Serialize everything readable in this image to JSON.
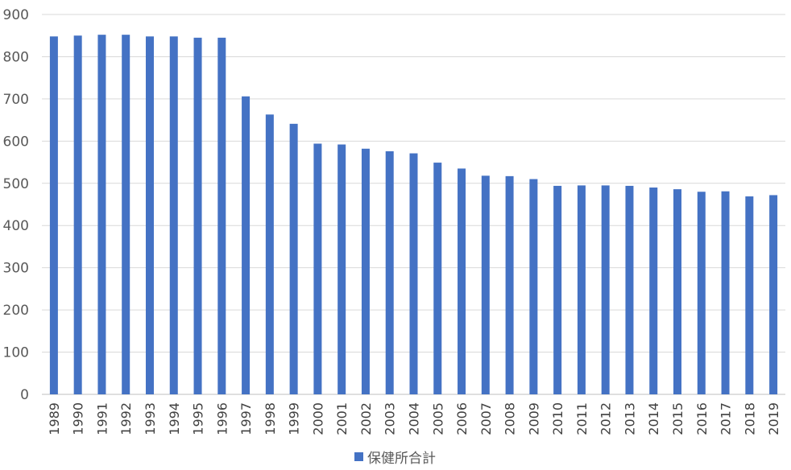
{
  "chart_data": {
    "type": "bar",
    "title": "",
    "xlabel": "",
    "ylabel": "",
    "ylim": [
      0,
      900
    ],
    "yticks": [
      0,
      100,
      200,
      300,
      400,
      500,
      600,
      700,
      800,
      900
    ],
    "grid": true,
    "legend_position": "bottom",
    "categories": [
      "1989",
      "1990",
      "1991",
      "1992",
      "1993",
      "1994",
      "1995",
      "1996",
      "1997",
      "1998",
      "1999",
      "2000",
      "2001",
      "2002",
      "2003",
      "2004",
      "2005",
      "2006",
      "2007",
      "2008",
      "2009",
      "2010",
      "2011",
      "2012",
      "2013",
      "2014",
      "2015",
      "2016",
      "2017",
      "2018",
      "2019"
    ],
    "series": [
      {
        "name": "保健所合計",
        "color": "#4472c4",
        "values": [
          848,
          850,
          852,
          852,
          848,
          848,
          845,
          845,
          706,
          663,
          641,
          594,
          592,
          582,
          576,
          571,
          549,
          535,
          518,
          517,
          510,
          494,
          495,
          495,
          494,
          490,
          486,
          480,
          481,
          469,
          472
        ]
      }
    ]
  }
}
